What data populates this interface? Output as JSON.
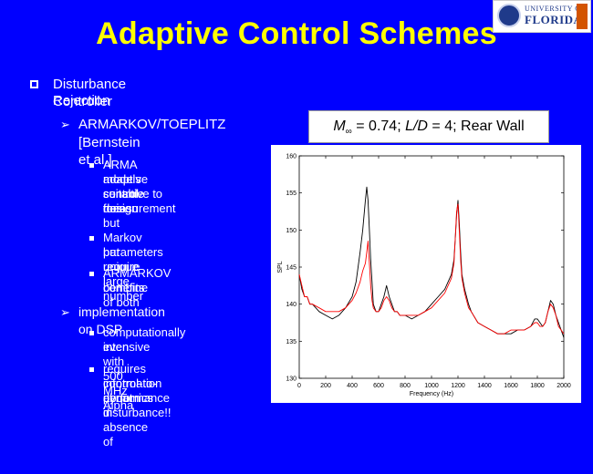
{
  "slide": {
    "title": "Adaptive Control Schemes",
    "logo": {
      "line1": "UNIVERSITY OF",
      "line2": "FLORIDA"
    }
  },
  "bullets": {
    "l1": {
      "text_line1": "Disturbance Rejection",
      "text_line2": "Controller"
    },
    "l2a": {
      "text_line1": "ARMARKOV/TOEPLITZ",
      "text_line2": "[Bernstein et al.]"
    },
    "l3a": {
      "lines": [
        "ARMA models suitable for",
        "adaptive control design but",
        "sensitive to measurement",
        "noise"
      ]
    },
    "l3b": {
      "lines": [
        "Markov parameters unique",
        "but require large number"
      ]
    },
    "l3c": {
      "lines": [
        "ARMARKOV combine",
        "benefits of both"
      ]
    },
    "l2b": {
      "text_line1": "implementation on DSP"
    },
    "l3d": {
      "lines": [
        "computationally intensive",
        "even with 500 MHz Alpha"
      ]
    },
    "l3e": {
      "lines": [
        "requires information about",
        "control-to-performance",
        "dynamics in absence of",
        "disturbance!!"
      ]
    }
  },
  "chart_caption": {
    "m_symbol": "M",
    "m_sub": "∞",
    "m_val": " = 0.74; ",
    "ld_symbol": "L/D",
    "ld_val": " = 4; Rear Wall"
  },
  "chart_data": {
    "type": "line",
    "title": "",
    "xlabel": "Frequency (Hz)",
    "ylabel": "SPL",
    "xlim": [
      0,
      2000
    ],
    "ylim": [
      130,
      160
    ],
    "xticks": [
      0,
      200,
      400,
      600,
      800,
      1000,
      1200,
      1400,
      1600,
      1800,
      2000
    ],
    "yticks": [
      130,
      135,
      140,
      145,
      150,
      155,
      160
    ],
    "grid": false,
    "series": [
      {
        "color": "#000000",
        "x": [
          0,
          20,
          40,
          60,
          80,
          100,
          150,
          200,
          250,
          300,
          350,
          400,
          430,
          460,
          480,
          500,
          510,
          520,
          530,
          540,
          550,
          560,
          580,
          600,
          620,
          640,
          660,
          680,
          700,
          720,
          740,
          760,
          780,
          800,
          850,
          900,
          950,
          1000,
          1050,
          1100,
          1150,
          1170,
          1180,
          1190,
          1200,
          1210,
          1220,
          1230,
          1250,
          1280,
          1300,
          1350,
          1400,
          1450,
          1500,
          1550,
          1600,
          1650,
          1700,
          1750,
          1780,
          1800,
          1820,
          1840,
          1860,
          1880,
          1900,
          1920,
          1940,
          1960,
          1980,
          2000
        ],
        "y": [
          144,
          142,
          141,
          141,
          140,
          140,
          139,
          138.5,
          138,
          138.5,
          139.5,
          141,
          143,
          147,
          150,
          154,
          155.8,
          154,
          150,
          146,
          143,
          140,
          139,
          139,
          140,
          141,
          142.5,
          141,
          140,
          139,
          139,
          138.5,
          138.5,
          138.5,
          138,
          138.5,
          139,
          140,
          141,
          142,
          144,
          146,
          149,
          152,
          154,
          151,
          147,
          144,
          142,
          140,
          139,
          137.5,
          137,
          136.5,
          136,
          136,
          136,
          136.5,
          136.5,
          137,
          138,
          138,
          137.5,
          137,
          137.5,
          139,
          140.5,
          140,
          138.5,
          137.5,
          136.5,
          135.5
        ]
      },
      {
        "color": "#ff0000",
        "x": [
          0,
          20,
          40,
          60,
          80,
          100,
          150,
          200,
          250,
          300,
          350,
          400,
          430,
          460,
          480,
          500,
          510,
          520,
          530,
          540,
          550,
          560,
          580,
          600,
          620,
          640,
          660,
          680,
          700,
          720,
          740,
          760,
          780,
          800,
          850,
          900,
          950,
          1000,
          1050,
          1100,
          1150,
          1170,
          1180,
          1190,
          1200,
          1210,
          1220,
          1230,
          1250,
          1280,
          1300,
          1350,
          1400,
          1450,
          1500,
          1550,
          1600,
          1650,
          1700,
          1750,
          1780,
          1800,
          1820,
          1840,
          1860,
          1880,
          1900,
          1920,
          1940,
          1960,
          1980,
          2000
        ],
        "y": [
          144,
          142.5,
          141,
          141,
          140,
          140,
          139.5,
          139,
          139,
          139,
          139.5,
          140.5,
          141.5,
          143,
          144.5,
          145.5,
          147,
          148.5,
          145.5,
          142.5,
          140.5,
          139.5,
          139,
          139,
          139.5,
          140.5,
          141,
          140.5,
          139.5,
          139,
          139,
          138.5,
          138.5,
          138.5,
          138.5,
          138.5,
          139,
          139.5,
          140.5,
          141.5,
          143.5,
          145.5,
          149,
          152.5,
          153.5,
          150,
          146,
          143.5,
          141.5,
          139.5,
          139,
          137.5,
          137,
          136.5,
          136,
          136,
          136.5,
          136.5,
          136.5,
          137,
          137.5,
          137.5,
          137,
          137,
          137.5,
          139,
          140,
          139.5,
          138.5,
          137,
          136.5,
          136
        ]
      }
    ]
  },
  "colors": {
    "background": "#0000ff",
    "title": "#ffff00",
    "text": "#ffffff",
    "series1": "#000000",
    "series2": "#ff0000"
  }
}
